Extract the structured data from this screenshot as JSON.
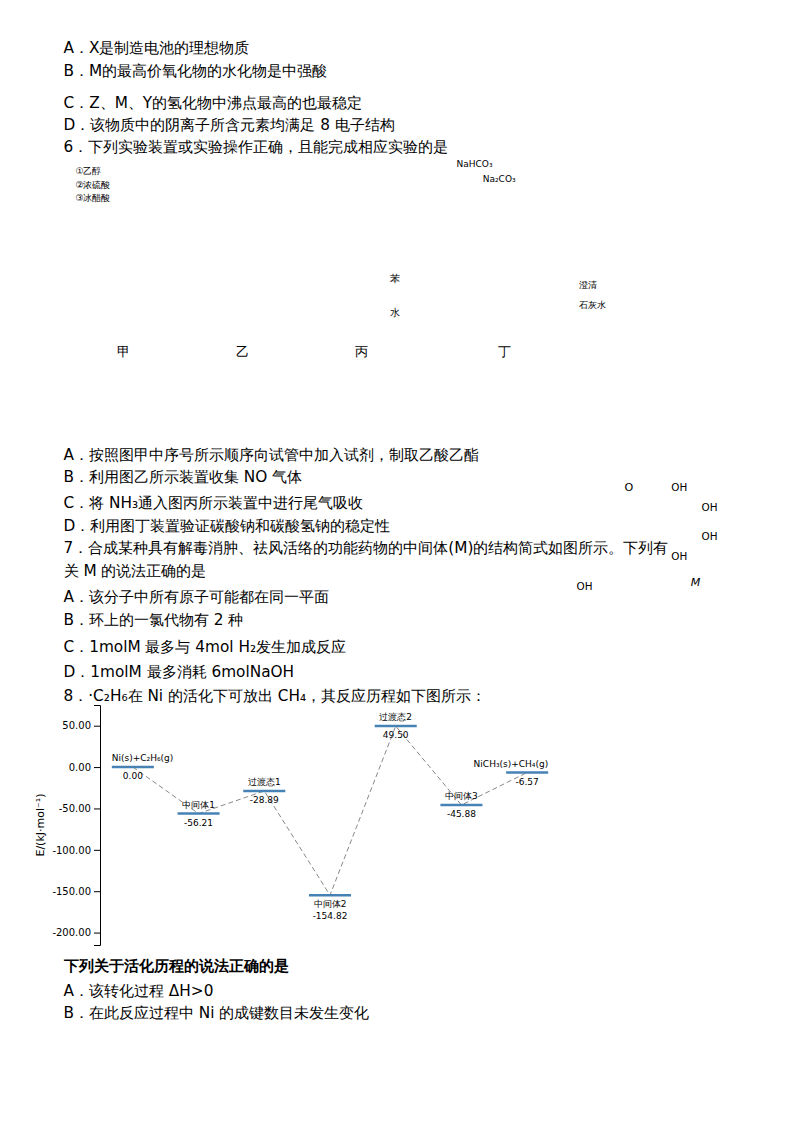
{
  "chart_data": {
    "type": "line",
    "line_style": "dashed",
    "data_labels": true,
    "y_label": "E/(kJ·mol⁻¹)",
    "categories": [
      "Ni(s)+C₂H₆(g)",
      "中间体1",
      "过渡态1",
      "中间体2",
      "过渡态2",
      "中间体3",
      "NiCH₃(s)+CH₄(g)"
    ],
    "values": [
      0.0,
      -56.21,
      -28.89,
      -154.82,
      49.5,
      -45.88,
      -6.57
    ],
    "value_labels": [
      "0.00",
      "-56.21",
      "-28.89",
      "-154.82",
      "49.50",
      "-45.88",
      "-6.57"
    ],
    "ylim": [
      -215,
      75
    ],
    "yticks": [
      {
        "value": 50,
        "label": "50.00"
      },
      {
        "value": 0,
        "label": "0.00"
      },
      {
        "value": -50,
        "label": "-50.00"
      },
      {
        "value": -100,
        "label": "-100.00"
      },
      {
        "value": -150,
        "label": "-150.00"
      },
      {
        "value": -200,
        "label": "-200.00"
      }
    ],
    "annotations": [
      "A．X是制造电池的理想物质",
      "B．M的最高价氧化物的水化物是中强酸",
      "C．Z、M、Y的氢化物中沸点最高的也最稳定",
      "D．该物质中的阴离子所含元素均满足 8 电子结构",
      "6．下列实验装置或实验操作正确，且能完成相应实验的是",
      "A．按照图甲中序号所示顺序向试管中加入试剂，制取乙酸乙酯",
      "B．利用图乙所示装置收集 NO 气体",
      "C．将 NH₃通入图丙所示装置中进行尾气吸收",
      "D．利用图丁装置验证碳酸钠和碳酸氢钠的稳定性",
      "7．合成某种具有解毒消肿、祛风活络的功能药物的中间体(M)的结构简式如图所示。下列有",
      "关 M 的说法正确的是",
      "A．该分子中所有原子可能都在同一平面",
      "B．环上的一氯代物有 2 种",
      "C．1molM 最多与 4mol H₂发生加成反应",
      "D．1molM 最多消耗 6molNaOH",
      "8．·C₂H₆在 Ni 的活化下可放出 CH₄，其反应历程如下图所示：",
      "下列关于活化历程的说法正确的是",
      "A．该转化过程 ΔH>0",
      "B．在此反应过程中 Ni 的成键数目未发生变化",
      "①乙醇",
      "②浓硫酸",
      "③冰醋酸",
      "甲",
      "乙",
      "苯",
      "水",
      "丙",
      "NaHCO₃",
      "Na₂CO₃",
      "澄清",
      "石灰水",
      "丁",
      "O",
      "OH",
      "OH",
      "OH",
      "OH",
      "M",
      "OH"
    ]
  }
}
